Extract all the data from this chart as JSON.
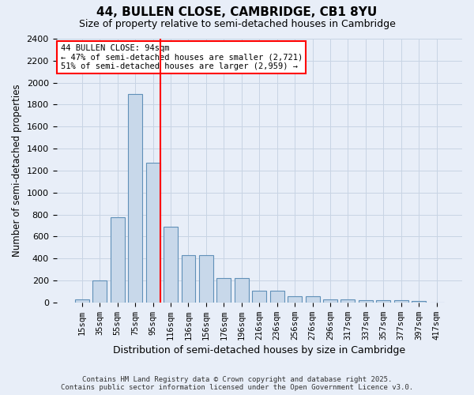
{
  "title1": "44, BULLEN CLOSE, CAMBRIDGE, CB1 8YU",
  "title2": "Size of property relative to semi-detached houses in Cambridge",
  "xlabel": "Distribution of semi-detached houses by size in Cambridge",
  "ylabel": "Number of semi-detached properties",
  "categories": [
    "15sqm",
    "35sqm",
    "55sqm",
    "75sqm",
    "95sqm",
    "116sqm",
    "136sqm",
    "156sqm",
    "176sqm",
    "196sqm",
    "216sqm",
    "236sqm",
    "256sqm",
    "276sqm",
    "296sqm",
    "317sqm",
    "337sqm",
    "357sqm",
    "377sqm",
    "397sqm",
    "417sqm"
  ],
  "values": [
    30,
    200,
    775,
    1900,
    1270,
    690,
    430,
    430,
    220,
    220,
    105,
    105,
    55,
    55,
    30,
    30,
    20,
    20,
    20,
    15,
    0
  ],
  "bar_color": "#c8d8ea",
  "bar_edge_color": "#6090b8",
  "grid_color": "#c8d4e4",
  "background_color": "#e8eef8",
  "vline_x_index": 4,
  "vline_color": "red",
  "annotation_title": "44 BULLEN CLOSE: 94sqm",
  "annotation_line1": "← 47% of semi-detached houses are smaller (2,721)",
  "annotation_line2": "51% of semi-detached houses are larger (2,959) →",
  "annotation_box_color": "white",
  "annotation_box_edge": "red",
  "footnote1": "Contains HM Land Registry data © Crown copyright and database right 2025.",
  "footnote2": "Contains public sector information licensed under the Open Government Licence v3.0.",
  "ylim": [
    0,
    2400
  ],
  "yticks": [
    0,
    200,
    400,
    600,
    800,
    1000,
    1200,
    1400,
    1600,
    1800,
    2000,
    2200,
    2400
  ]
}
